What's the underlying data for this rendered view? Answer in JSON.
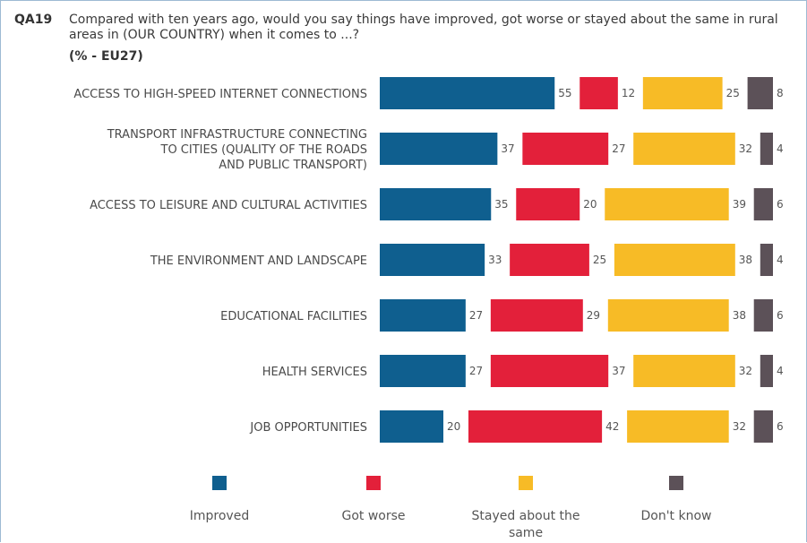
{
  "header": {
    "code": "QA19",
    "question": "Compared with ten years ago, would you say things have improved, got worse or stayed about the same in rural areas in (OUR COUNTRY) when it comes to ...?",
    "subtitle": "(% - EU27)"
  },
  "chart_data": {
    "type": "bar",
    "orientation": "horizontal-stacked",
    "categories": [
      [
        "ACCESS TO HIGH-SPEED INTERNET CONNECTIONS"
      ],
      [
        "TRANSPORT INFRASTRUCTURE CONNECTING",
        "TO CITIES (QUALITY OF THE ROADS",
        "AND PUBLIC TRANSPORT)"
      ],
      [
        "ACCESS TO LEISURE AND CULTURAL ACTIVITIES"
      ],
      [
        "THE ENVIRONMENT AND LANDSCAPE"
      ],
      [
        "EDUCATIONAL FACILITIES"
      ],
      [
        "HEALTH SERVICES"
      ],
      [
        "JOB OPPORTUNITIES"
      ]
    ],
    "series": [
      {
        "name": "Improved",
        "color": "#0f5f8f",
        "values": [
          55,
          37,
          35,
          33,
          27,
          27,
          20
        ]
      },
      {
        "name": "Got worse",
        "color": "#e3203a",
        "values": [
          12,
          27,
          20,
          25,
          29,
          37,
          42
        ]
      },
      {
        "name": "Stayed about the same",
        "color": "#f7bb26",
        "values": [
          25,
          32,
          39,
          38,
          38,
          32,
          32
        ]
      },
      {
        "name": "Don't know",
        "color": "#5c5158",
        "values": [
          8,
          4,
          6,
          4,
          6,
          4,
          6
        ]
      }
    ],
    "legend": {
      "position": "bottom",
      "labels": [
        [
          "Improved"
        ],
        [
          "Got worse"
        ],
        [
          "Stayed about the",
          "same"
        ],
        [
          "Don't know"
        ]
      ]
    }
  }
}
